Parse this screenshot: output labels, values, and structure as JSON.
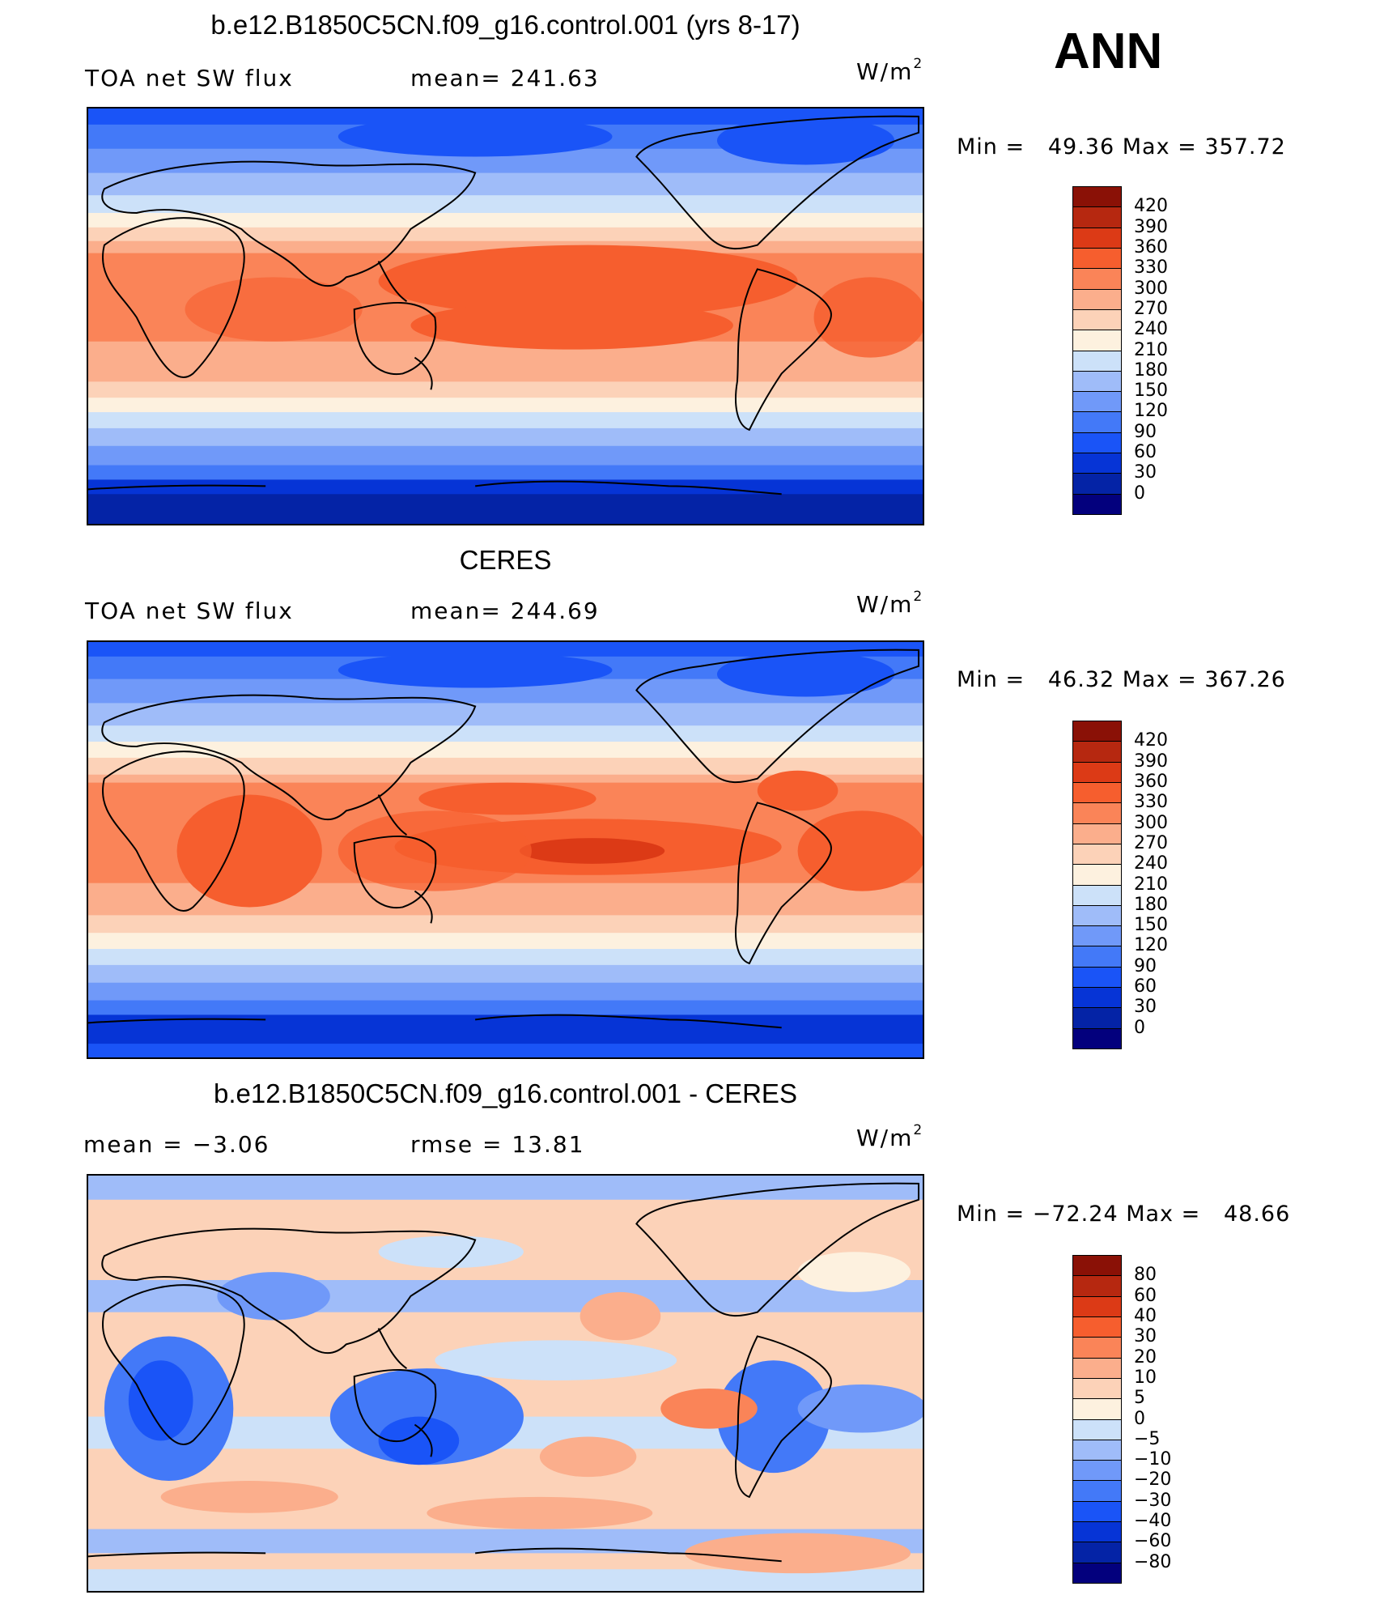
{
  "season": "ANN",
  "palette": [
    "#03007d",
    "#0423a6",
    "#0634d6",
    "#1a54f7",
    "#4379f8",
    "#7099f9",
    "#9fbcf9",
    "#cce1f9",
    "#fdf1df",
    "#fcd2b8",
    "#fbae8c",
    "#fa8458",
    "#f65e2e",
    "#dc3a16",
    "#b62810",
    "#8a1106"
  ],
  "panels": [
    {
      "id": "model",
      "title": "b.e12.B1850C5CN.f09_g16.control.001 (yrs 8-17)",
      "left_label": "TOA net SW flux",
      "stat_label": "mean= 241.63",
      "units_base": "W/m",
      "units_exp": "2",
      "minmax": "Min =   49.36 Max = 357.72",
      "colorbar_labels": [
        "420",
        "390",
        "360",
        "330",
        "300",
        "270",
        "240",
        "210",
        "180",
        "150",
        "120",
        "90",
        "60",
        "30",
        "0"
      ]
    },
    {
      "id": "obs",
      "title": "CERES",
      "left_label": "TOA net SW flux",
      "stat_label": "mean= 244.69",
      "units_base": "W/m",
      "units_exp": "2",
      "minmax": "Min =   46.32 Max = 367.26",
      "colorbar_labels": [
        "420",
        "390",
        "360",
        "330",
        "300",
        "270",
        "240",
        "210",
        "180",
        "150",
        "120",
        "90",
        "60",
        "30",
        "0"
      ]
    },
    {
      "id": "diff",
      "title": "b.e12.B1850C5CN.f09_g16.control.001 - CERES",
      "left_label": "mean =   −3.06",
      "stat_label": "rmse =   13.81",
      "units_base": "W/m",
      "units_exp": "2",
      "minmax": "Min = −72.24 Max =   48.66",
      "colorbar_labels": [
        "80",
        "60",
        "40",
        "30",
        "20",
        "10",
        "5",
        "0",
        "−5",
        "−10",
        "−20",
        "−30",
        "−40",
        "−60",
        "−80"
      ]
    }
  ]
}
